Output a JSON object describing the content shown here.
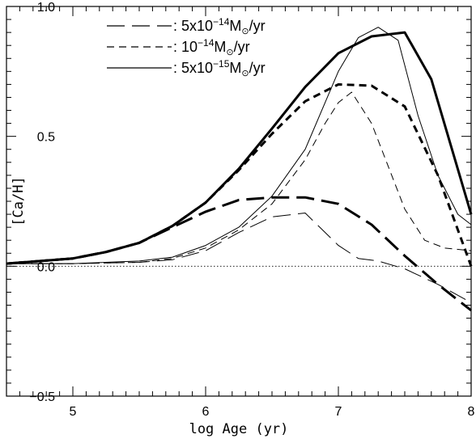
{
  "chart_data": {
    "type": "line",
    "xlabel": "log Age (yr)",
    "ylabel": "[Ca/H]",
    "xlim": [
      4.5,
      8.0
    ],
    "ylim": [
      -0.5,
      1.0
    ],
    "x_ticks": [
      5,
      6,
      7,
      8
    ],
    "x_tick_labels": [
      "5",
      "6",
      "7",
      "8"
    ],
    "y_ticks": [
      -0.5,
      0.0,
      0.5,
      1.0
    ],
    "y_tick_labels": [
      "−0.5",
      "0.0",
      "0.5",
      "1.0"
    ],
    "grid": false,
    "legend_position": "top-left",
    "zero_line": true,
    "legend": [
      {
        "key": "a",
        "pre": ": 5x10",
        "sup": "−14",
        "post": "M",
        "unit": "/yr",
        "dash": "long"
      },
      {
        "key": "b",
        "pre": ":  10",
        "sup": "−14",
        "post": "M",
        "unit": "/yr",
        "dash": "short"
      },
      {
        "key": "c",
        "pre": ": 5x10",
        "sup": "−15",
        "post": "M",
        "unit": "/yr",
        "dash": "solid"
      }
    ],
    "series": [
      {
        "key": "a-thick",
        "dash": "long",
        "weight": "thick",
        "x": [
          4.5,
          5.0,
          5.25,
          5.5,
          5.75,
          6.0,
          6.25,
          6.5,
          6.75,
          7.0,
          7.25,
          7.5,
          7.75,
          8.0
        ],
        "y": [
          0.01,
          0.03,
          0.055,
          0.09,
          0.15,
          0.21,
          0.255,
          0.265,
          0.265,
          0.24,
          0.16,
          0.04,
          -0.07,
          -0.17
        ]
      },
      {
        "key": "b-thick",
        "dash": "short",
        "weight": "thick",
        "x": [
          4.5,
          5.0,
          5.25,
          5.5,
          5.75,
          6.0,
          6.25,
          6.5,
          6.75,
          7.0,
          7.25,
          7.5,
          7.75,
          8.0
        ],
        "y": [
          0.01,
          0.03,
          0.055,
          0.09,
          0.155,
          0.245,
          0.37,
          0.51,
          0.635,
          0.7,
          0.695,
          0.615,
          0.35,
          0.0
        ]
      },
      {
        "key": "c-thick",
        "dash": "solid",
        "weight": "thick",
        "x": [
          4.5,
          5.0,
          5.25,
          5.5,
          5.75,
          6.0,
          6.25,
          6.5,
          6.75,
          7.0,
          7.25,
          7.5,
          7.7,
          8.0
        ],
        "y": [
          0.01,
          0.03,
          0.055,
          0.09,
          0.155,
          0.245,
          0.375,
          0.53,
          0.69,
          0.82,
          0.885,
          0.9,
          0.72,
          0.2
        ]
      },
      {
        "key": "a-thin",
        "dash": "long",
        "weight": "thin",
        "x": [
          4.5,
          5.0,
          5.5,
          5.75,
          6.0,
          6.25,
          6.5,
          6.75,
          7.0,
          7.15,
          7.3,
          7.5,
          7.75,
          8.0
        ],
        "y": [
          0.01,
          0.01,
          0.015,
          0.025,
          0.06,
          0.13,
          0.19,
          0.205,
          0.08,
          0.03,
          0.02,
          -0.01,
          -0.07,
          -0.14
        ]
      },
      {
        "key": "b-thin",
        "dash": "short",
        "weight": "thin",
        "x": [
          4.5,
          5.0,
          5.5,
          5.75,
          6.0,
          6.25,
          6.5,
          6.75,
          6.9,
          7.0,
          7.1,
          7.25,
          7.5,
          7.65,
          7.8,
          8.0
        ],
        "y": [
          0.01,
          0.01,
          0.015,
          0.03,
          0.07,
          0.14,
          0.24,
          0.41,
          0.55,
          0.63,
          0.67,
          0.55,
          0.22,
          0.1,
          0.07,
          0.06
        ]
      },
      {
        "key": "c-thin",
        "dash": "solid",
        "weight": "thin",
        "x": [
          4.5,
          5.0,
          5.5,
          5.75,
          6.0,
          6.25,
          6.5,
          6.75,
          7.0,
          7.15,
          7.3,
          7.45,
          7.6,
          7.75,
          7.9,
          8.0
        ],
        "y": [
          0.01,
          0.01,
          0.02,
          0.035,
          0.08,
          0.15,
          0.27,
          0.45,
          0.75,
          0.88,
          0.92,
          0.87,
          0.58,
          0.35,
          0.2,
          0.16
        ]
      }
    ]
  }
}
